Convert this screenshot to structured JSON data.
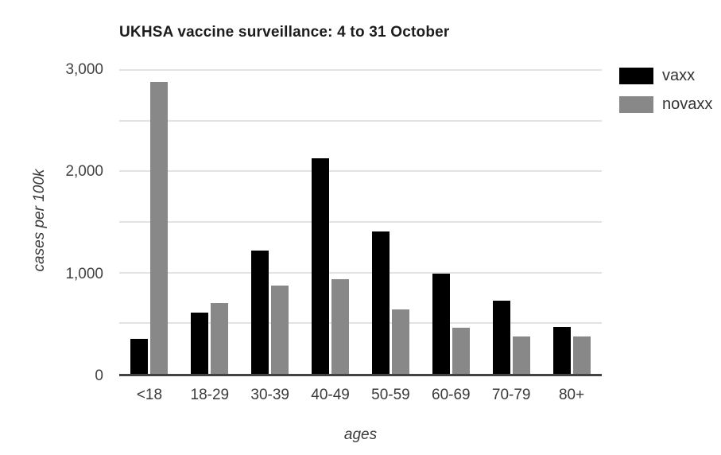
{
  "chart_data": {
    "type": "bar",
    "title": "UKHSA vaccine surveillance: 4 to 31 October",
    "xlabel": "ages",
    "ylabel": "cases per 100k",
    "categories": [
      "<18",
      "18-29",
      "30-39",
      "40-49",
      "50-59",
      "60-69",
      "70-79",
      "80+"
    ],
    "series": [
      {
        "name": "vaxx",
        "color": "#000000",
        "values": [
          348,
          607,
          1216,
          2125,
          1406,
          990,
          724,
          463
        ]
      },
      {
        "name": "novaxx",
        "color": "#888888",
        "values": [
          2879,
          698,
          869,
          933,
          640,
          453,
          366,
          366
        ]
      }
    ],
    "ylim": [
      0,
      3000
    ],
    "ytick_labels": [
      "0",
      "1,000",
      "2,000",
      "3,000"
    ],
    "ytick_values": [
      0,
      1000,
      2000,
      3000
    ],
    "gridline_values": [
      500,
      1000,
      1500,
      2000,
      2500,
      3000
    ],
    "grid": "on",
    "legend_position": "top-right"
  },
  "colors": {
    "gridline": "#e2e2e2",
    "axis_line": "#424242",
    "tick_text": "#424242",
    "title_text": "#1c1c1c"
  }
}
